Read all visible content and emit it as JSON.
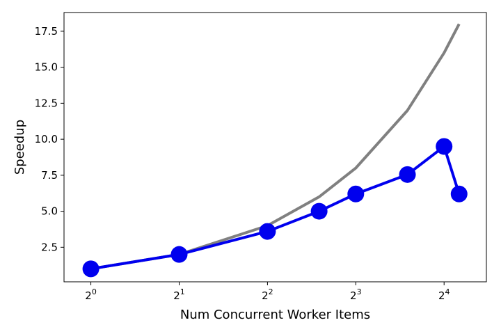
{
  "chart_data": {
    "type": "line",
    "title": "",
    "xlabel": "Num Concurrent Worker Items",
    "ylabel": "Speedup",
    "x_scale": "log2",
    "xlim": [
      0.81,
      22.3
    ],
    "ylim": [
      0.1,
      18.8
    ],
    "grid": false,
    "x_ticks": [
      {
        "value": 1,
        "base": "2",
        "exp": "0"
      },
      {
        "value": 2,
        "base": "2",
        "exp": "1"
      },
      {
        "value": 4,
        "base": "2",
        "exp": "2"
      },
      {
        "value": 8,
        "base": "2",
        "exp": "3"
      },
      {
        "value": 16,
        "base": "2",
        "exp": "4"
      }
    ],
    "y_ticks": [
      {
        "value": 2.5,
        "label": "2.5"
      },
      {
        "value": 5.0,
        "label": "5.0"
      },
      {
        "value": 7.5,
        "label": "7.5"
      },
      {
        "value": 10.0,
        "label": "10.0"
      },
      {
        "value": 12.5,
        "label": "12.5"
      },
      {
        "value": 15.0,
        "label": "15.0"
      },
      {
        "value": 17.5,
        "label": "17.5"
      }
    ],
    "series": [
      {
        "color": "#808080",
        "markers": false,
        "x": [
          1,
          2,
          4,
          6,
          8,
          12,
          16,
          18
        ],
        "y": [
          1,
          2,
          4,
          6,
          8,
          12,
          16,
          18
        ]
      },
      {
        "color": "#0000ee",
        "markers": true,
        "x": [
          1,
          2,
          4,
          6,
          8,
          12,
          16,
          18
        ],
        "y": [
          1.0,
          2.0,
          3.6,
          5.0,
          6.2,
          7.55,
          9.5,
          6.2
        ]
      }
    ]
  }
}
